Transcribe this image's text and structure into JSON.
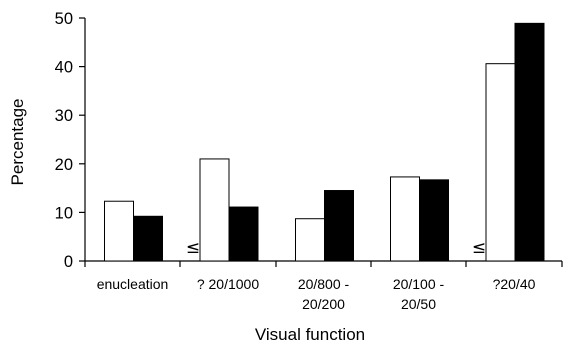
{
  "chart_data": {
    "type": "bar",
    "xlabel": "Visual function",
    "ylabel": "Percentage",
    "ylim": [
      0,
      50
    ],
    "yticks": [
      0,
      10,
      20,
      30,
      40,
      50
    ],
    "categories": [
      [
        "enucleation"
      ],
      [
        "? 20/1000"
      ],
      [
        "20/800 -",
        "20/200"
      ],
      [
        "20/100 -",
        "20/50"
      ],
      [
        "?20/40"
      ]
    ],
    "series": [
      {
        "values": [
          12.3,
          21,
          8.7,
          17.3,
          40.6
        ],
        "color": "#ffffff"
      },
      {
        "values": [
          9.2,
          11.1,
          14.5,
          16.7,
          48.9
        ],
        "color": "#000000"
      }
    ],
    "annotations": [
      {
        "text": "≤",
        "category_index": 1
      },
      {
        "text": "≤",
        "category_index": 4
      }
    ],
    "grid": false,
    "legend": "none"
  }
}
